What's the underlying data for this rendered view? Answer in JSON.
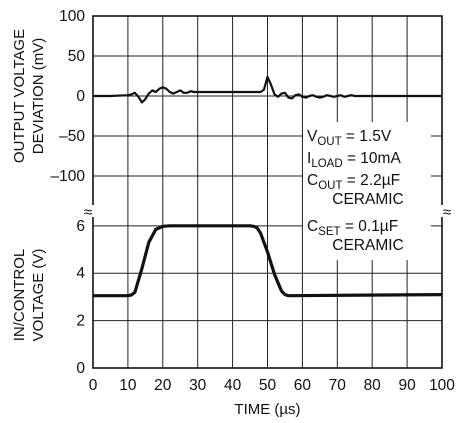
{
  "chart_data": {
    "type": "line",
    "xlabel": "TIME (µs)",
    "x_ticks": [
      "0",
      "10",
      "20",
      "30",
      "40",
      "50",
      "60",
      "70",
      "80",
      "90",
      "100"
    ],
    "x_range": [
      0,
      100
    ],
    "grid": true,
    "top_panel": {
      "ylabel_lines": [
        "OUTPUT VOLTAGE",
        "DEVIATION (mV)"
      ],
      "y_ticks": [
        "100",
        "50",
        "0",
        "–50",
        "–100"
      ],
      "y_range": [
        -120,
        100
      ],
      "series": [
        {
          "x": [
            0,
            5,
            10,
            11,
            12,
            13,
            14,
            15,
            16,
            17,
            18,
            19,
            20,
            21,
            22,
            23,
            24,
            25,
            26,
            27,
            28,
            29,
            30,
            32,
            34,
            36,
            38,
            40,
            42,
            44,
            46,
            47,
            48,
            49,
            50,
            51,
            52,
            53,
            54,
            55,
            56,
            57,
            58,
            59,
            60,
            61,
            62,
            63,
            64,
            65,
            66,
            67,
            68,
            69,
            70,
            71,
            72,
            73,
            74,
            75,
            76,
            78,
            80,
            85,
            90,
            95,
            100
          ],
          "y": [
            0,
            0,
            1,
            2,
            4,
            -1,
            -8,
            -4,
            3,
            7,
            5,
            9,
            11,
            9,
            5,
            3,
            5,
            7,
            4,
            4,
            6,
            5,
            5,
            5,
            5,
            5,
            5,
            5,
            5,
            5,
            5,
            5,
            5,
            8,
            24,
            14,
            2,
            -1,
            3,
            4,
            -2,
            -3,
            1,
            2,
            -1,
            -2,
            0,
            1,
            -1,
            -2,
            -1,
            1,
            0,
            -1,
            0,
            1,
            -1,
            0,
            1,
            0,
            0,
            0,
            0,
            0,
            0,
            0,
            0
          ]
        }
      ]
    },
    "bottom_panel": {
      "ylabel_lines": [
        "IN/CONTROL",
        "VOLTAGE (V)"
      ],
      "y_ticks": [
        "6",
        "4",
        "2",
        "0"
      ],
      "y_range": [
        0,
        6.5
      ],
      "series": [
        {
          "x": [
            0,
            9,
            10,
            11,
            12,
            14,
            16,
            18,
            20,
            22,
            45,
            46,
            47,
            48,
            50,
            52,
            54,
            55,
            56,
            100
          ],
          "y": [
            3.05,
            3.05,
            3.05,
            3.08,
            3.2,
            4.2,
            5.3,
            5.85,
            5.98,
            6.0,
            6.0,
            5.98,
            5.92,
            5.7,
            4.9,
            3.95,
            3.25,
            3.1,
            3.05,
            3.1
          ]
        }
      ]
    },
    "break_mark": "≈",
    "annotations": [
      {
        "main": "V",
        "sub": "OUT",
        "rest": " = 1.5V"
      },
      {
        "main": "I",
        "sub": "LOAD",
        "rest": " = 10mA"
      },
      {
        "main": "C",
        "sub": "OUT",
        "rest": " = 2.2µF"
      },
      {
        "main": "CERAMIC",
        "sub": "",
        "rest": ""
      },
      {
        "main": "C",
        "sub": "SET",
        "rest": " = 0.1µF"
      },
      {
        "main": "CERAMIC",
        "sub": "",
        "rest": ""
      }
    ]
  }
}
